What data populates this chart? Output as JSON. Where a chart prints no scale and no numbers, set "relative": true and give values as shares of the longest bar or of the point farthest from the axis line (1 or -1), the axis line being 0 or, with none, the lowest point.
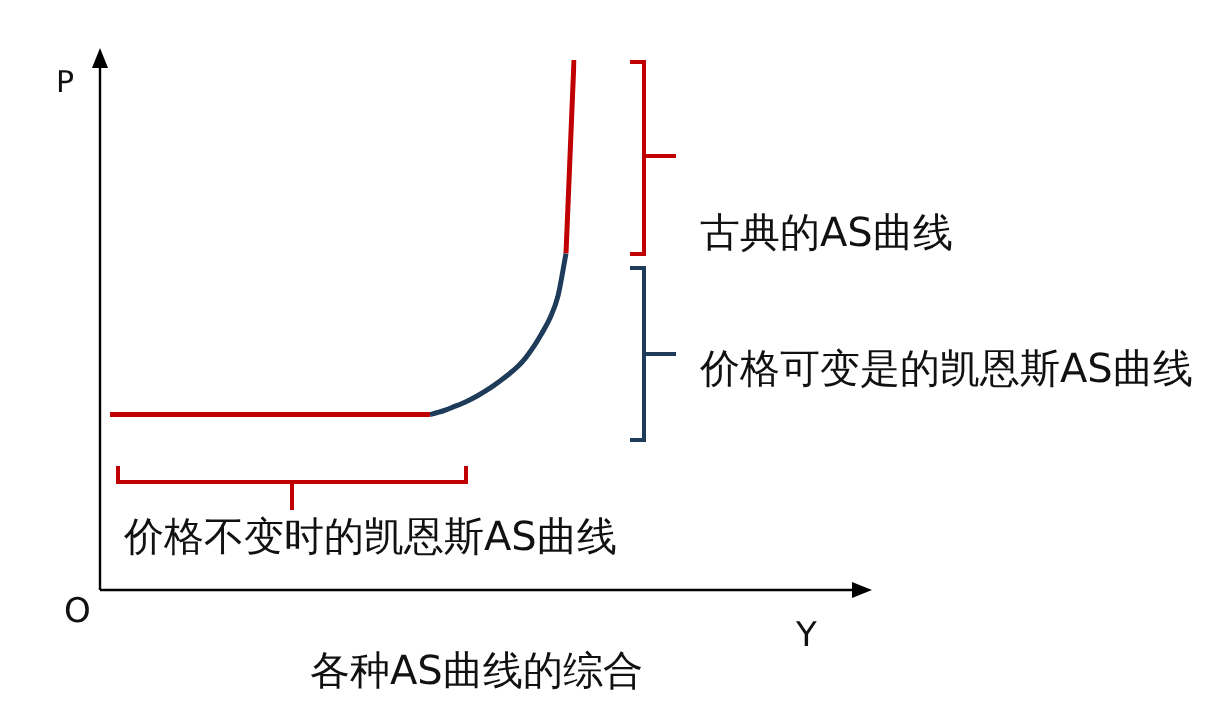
{
  "chart_data": {
    "type": "line",
    "title": "各种AS曲线的综合",
    "ylabel": "P",
    "relative": true,
    "legend": false,
    "marker": "none",
    "line_style": "solid",
    "annotations": [
      "O",
      "古典的AS曲线",
      "价格可变是的凯恩斯AS曲线",
      "价格不变时的凯恩斯AS曲线",
      "Y"
    ],
    "categories": [
      null,
      null,
      null,
      null,
      null,
      null,
      null,
      null,
      null,
      null,
      null,
      null,
      null,
      null,
      null,
      null,
      null,
      null,
      null,
      null,
      null,
      null,
      null,
      null,
      null,
      null,
      null,
      null,
      null,
      null,
      null,
      null,
      null,
      null,
      null,
      null,
      null,
      null,
      null,
      null,
      null,
      null,
      null,
      null,
      null,
      null,
      null,
      null,
      null,
      null,
      null,
      null,
      null,
      null,
      null,
      null,
      null,
      null,
      null
    ],
    "series": [
      {
        "color": "#c00000",
        "values": [
          0.331,
          0.331,
          0.331,
          0.331,
          0.331,
          0.331,
          0.331,
          0.331,
          0.331,
          0.331,
          0.331,
          0.331,
          0.331,
          0.331,
          0.331,
          0.331,
          0.331,
          0.331,
          0.331,
          0.331,
          0.331,
          0.331,
          0.331,
          0.331,
          0.331,
          0.331,
          0.331,
          0.331,
          0.331,
          0.331,
          0.331,
          0.331,
          0.331,
          0.331,
          0.331,
          0.331,
          0.331,
          0.331,
          0.331,
          0.331,
          0.331,
          null,
          null,
          null,
          null,
          null,
          null,
          null,
          null,
          null,
          null,
          null,
          null,
          null,
          null,
          null,
          null,
          null,
          null
        ]
      },
      {
        "color": "#1f3b5a",
        "values": [
          null,
          null,
          null,
          null,
          null,
          null,
          null,
          null,
          null,
          null,
          null,
          null,
          null,
          null,
          null,
          null,
          null,
          null,
          null,
          null,
          null,
          null,
          null,
          null,
          null,
          null,
          null,
          null,
          null,
          null,
          null,
          null,
          null,
          null,
          null,
          null,
          null,
          null,
          null,
          null,
          0.331,
          0.335,
          0.34,
          0.346,
          0.352,
          0.359,
          0.367,
          0.376,
          0.386,
          0.397,
          0.409,
          0.422,
          0.439,
          0.46,
          0.485,
          0.513,
          0.555,
          0.635,
          null
        ]
      },
      {
        "color": "#c00000",
        "values": [
          null,
          null,
          null,
          null,
          null,
          null,
          null,
          null,
          null,
          null,
          null,
          null,
          null,
          null,
          null,
          null,
          null,
          null,
          null,
          null,
          null,
          null,
          null,
          null,
          null,
          null,
          null,
          null,
          null,
          null,
          null,
          null,
          null,
          null,
          null,
          null,
          null,
          null,
          null,
          null,
          null,
          null,
          null,
          null,
          null,
          null,
          null,
          null,
          null,
          null,
          null,
          null,
          null,
          null,
          null,
          null,
          null,
          0.635,
          1
        ]
      }
    ]
  }
}
